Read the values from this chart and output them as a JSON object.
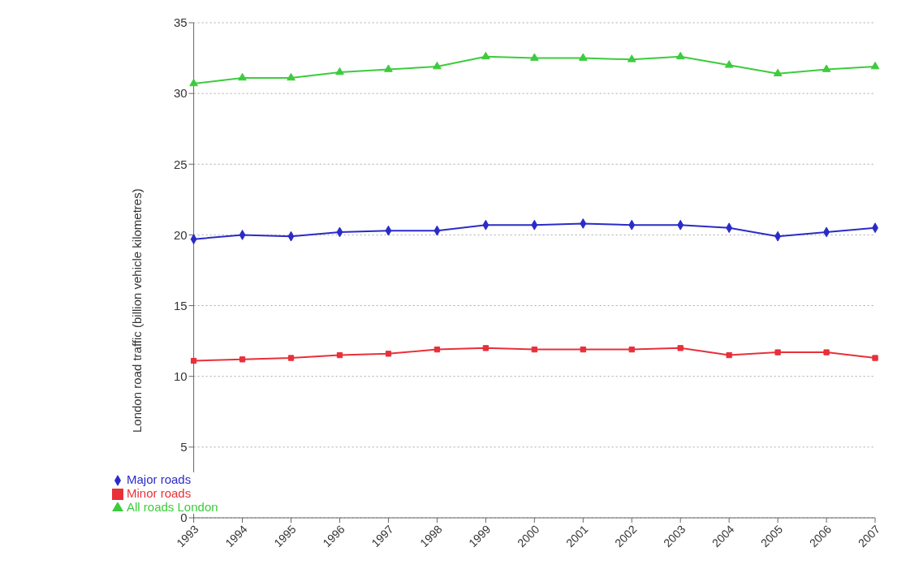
{
  "chart_data": {
    "type": "line",
    "ylabel": "London road traffic (billion vehicle kilometres)",
    "categories": [
      "1993",
      "1994",
      "1995",
      "1996",
      "1997",
      "1998",
      "1999",
      "2000",
      "2001",
      "2002",
      "2003",
      "2004",
      "2005",
      "2006",
      "2007"
    ],
    "series": [
      {
        "name": "Major roads",
        "color": "#2b2bc8",
        "marker": "diamond",
        "values": [
          19.7,
          20.0,
          19.9,
          20.2,
          20.3,
          20.3,
          20.7,
          20.7,
          20.8,
          20.7,
          20.7,
          20.5,
          19.9,
          20.2,
          20.5
        ]
      },
      {
        "name": "Minor roads",
        "color": "#e8303a",
        "marker": "square",
        "values": [
          11.1,
          11.2,
          11.3,
          11.5,
          11.6,
          11.9,
          12.0,
          11.9,
          11.9,
          11.9,
          12.0,
          11.5,
          11.7,
          11.7,
          11.3
        ]
      },
      {
        "name": "All roads London",
        "color": "#3ccc3c",
        "marker": "triangle",
        "values": [
          30.7,
          31.1,
          31.1,
          31.5,
          31.7,
          31.9,
          32.6,
          32.5,
          32.5,
          32.4,
          32.6,
          32.0,
          31.4,
          31.7,
          31.9
        ]
      }
    ],
    "ylim": [
      0,
      35
    ],
    "yticks": [
      0,
      5,
      10,
      15,
      20,
      25,
      30,
      35
    ],
    "grid": "y",
    "legend": "bottom left",
    "line_style": "solid"
  }
}
